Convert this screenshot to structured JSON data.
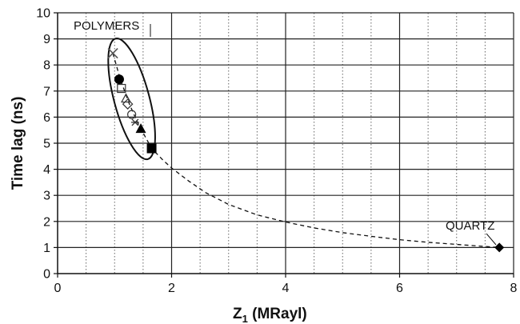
{
  "chart_data": {
    "type": "scatter",
    "xlabel_main": "Z",
    "xlabel_sub": "1",
    "xlabel_rest": " (MRayl)",
    "ylabel": "Time  lag (ns)",
    "xlim": [
      0,
      8
    ],
    "ylim": [
      0,
      10
    ],
    "x_major_ticks": [
      0,
      2,
      4,
      6,
      8
    ],
    "x_minor_gridlines": [
      0.5,
      1,
      1.5,
      2.5,
      3,
      3.5,
      4.5,
      5,
      5.5,
      6.5,
      7,
      7.5
    ],
    "y_ticks": [
      0,
      1,
      2,
      3,
      4,
      5,
      6,
      7,
      8,
      9,
      10
    ],
    "grid": "on",
    "annotations": {
      "polymers": "POLYMERS",
      "quartz": "QUARTZ"
    },
    "points": [
      {
        "marker": "cross",
        "x": 0.97,
        "y": 8.45
      },
      {
        "marker": "circle",
        "x": 1.08,
        "y": 7.45
      },
      {
        "marker": "square-open",
        "x": 1.12,
        "y": 7.1
      },
      {
        "marker": "triangle-open",
        "x": 1.2,
        "y": 6.7
      },
      {
        "marker": "diamond-open",
        "x": 1.23,
        "y": 6.5
      },
      {
        "marker": "circle-open",
        "x": 1.3,
        "y": 6.1
      },
      {
        "marker": "star",
        "x": 1.36,
        "y": 5.8
      },
      {
        "marker": "triangle",
        "x": 1.46,
        "y": 5.55
      },
      {
        "marker": "square",
        "x": 1.65,
        "y": 4.8
      },
      {
        "marker": "diamond",
        "x": 7.75,
        "y": 1.0
      }
    ],
    "fit_curve": {
      "style": "dashed",
      "x": [
        0.97,
        1.1,
        1.25,
        1.4,
        1.55,
        1.65,
        1.85,
        2.0,
        2.3,
        2.6,
        3.0,
        3.5,
        4.0,
        4.5,
        5.0,
        5.5,
        6.0,
        6.5,
        7.0,
        7.75
      ],
      "y": [
        8.45,
        7.45,
        6.55,
        5.8,
        5.2,
        4.8,
        4.35,
        4.05,
        3.55,
        3.1,
        2.65,
        2.25,
        1.98,
        1.75,
        1.57,
        1.43,
        1.3,
        1.2,
        1.12,
        1.0
      ]
    }
  }
}
